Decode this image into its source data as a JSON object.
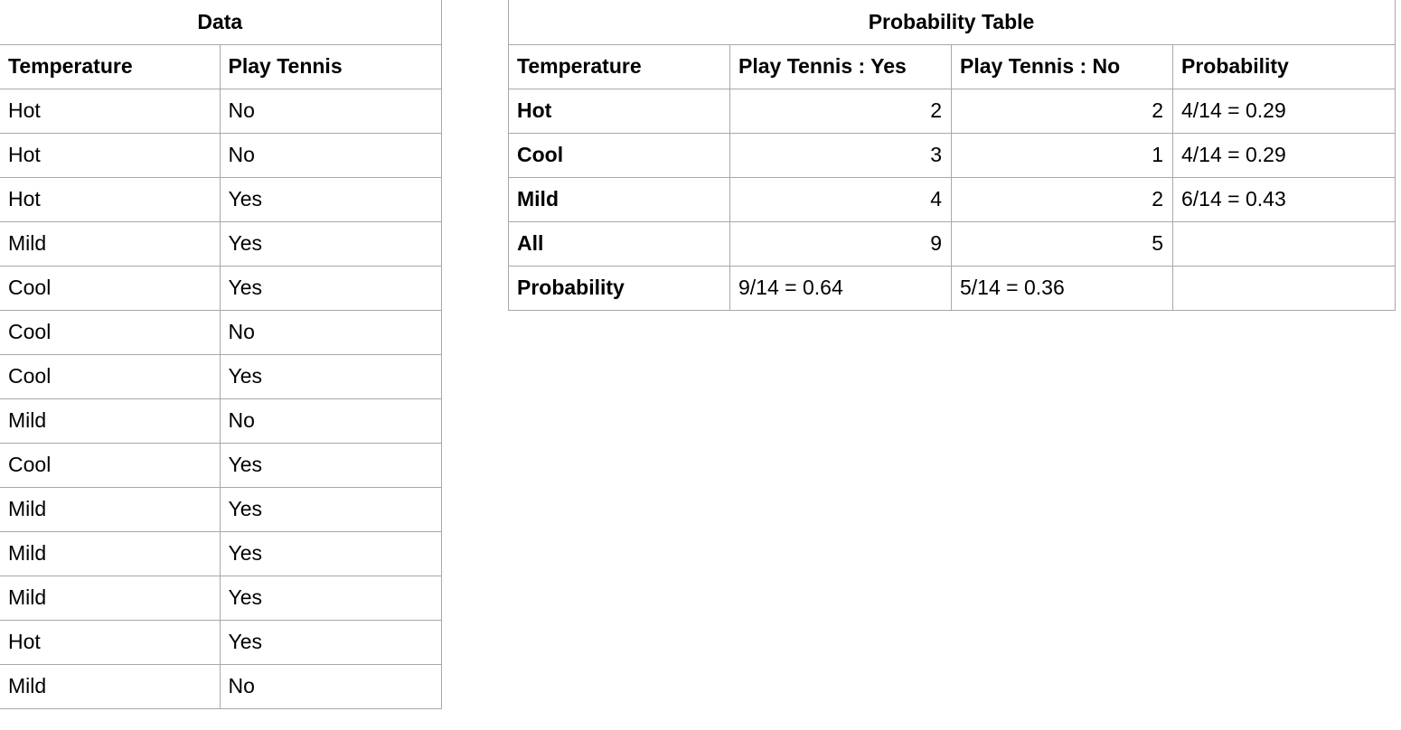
{
  "data_table": {
    "title": "Data",
    "headers": [
      "Temperature",
      "Play Tennis"
    ],
    "rows": [
      [
        "Hot",
        "No"
      ],
      [
        "Hot",
        "No"
      ],
      [
        "Hot",
        "Yes"
      ],
      [
        "Mild",
        "Yes"
      ],
      [
        "Cool",
        "Yes"
      ],
      [
        "Cool",
        "No"
      ],
      [
        "Cool",
        "Yes"
      ],
      [
        "Mild",
        "No"
      ],
      [
        "Cool",
        "Yes"
      ],
      [
        "Mild",
        "Yes"
      ],
      [
        "Mild",
        "Yes"
      ],
      [
        "Mild",
        "Yes"
      ],
      [
        "Hot",
        "Yes"
      ],
      [
        "Mild",
        "No"
      ]
    ]
  },
  "probability_table": {
    "title": "Probability Table",
    "headers": [
      "Temperature",
      "Play Tennis : Yes",
      "Play Tennis : No",
      "Probability"
    ],
    "rows": [
      [
        "Hot",
        "2",
        "2",
        "4/14 = 0.29"
      ],
      [
        "Cool",
        "3",
        "1",
        "4/14 = 0.29"
      ],
      [
        "Mild",
        "4",
        "2",
        "6/14 = 0.43"
      ],
      [
        "All",
        "9",
        "5",
        ""
      ],
      [
        "Probability",
        "9/14 = 0.64",
        "5/14 = 0.36",
        ""
      ]
    ]
  }
}
